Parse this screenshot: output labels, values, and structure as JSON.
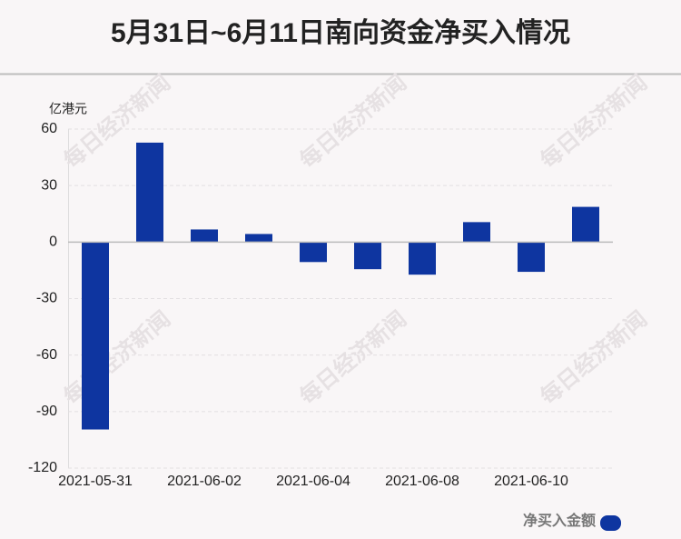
{
  "chart_data": {
    "type": "bar",
    "title": "5月31日~6月11日南向资金净买入情况",
    "y_label": "亿港元",
    "watermark": "每日经济新闻",
    "categories": [
      "2021-05-31",
      null,
      "2021-06-02",
      null,
      "2021-06-04",
      null,
      "2021-06-08",
      null,
      "2021-06-10",
      null
    ],
    "series": [
      {
        "name": "净买入金额",
        "color": "#0e35a0",
        "values": [
          -99.5,
          52.8,
          6.7,
          4.3,
          -10.6,
          -14.4,
          -17.3,
          10.6,
          -15.8,
          18.7
        ]
      }
    ],
    "ylim": [
      -120,
      60
    ],
    "yticks": [
      -120,
      -90,
      -60,
      -30,
      0,
      30,
      60
    ],
    "grid": true,
    "legend": "bottom-right"
  }
}
